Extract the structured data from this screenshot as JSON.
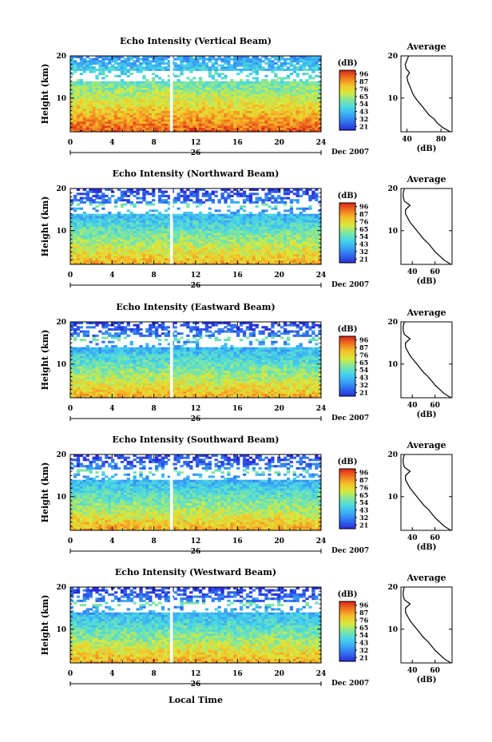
{
  "figure": {
    "xlabel": "Local Time",
    "date_label": "Dec 2007",
    "day_label": "26",
    "colorbar_unit": "(dB)",
    "colorbar_ticks": [
      "96",
      "87",
      "76",
      "65",
      "54",
      "43",
      "32",
      "21"
    ],
    "colorbar_colors": [
      "#2b2bd6",
      "#2f6cf0",
      "#3aa6f5",
      "#46d6e8",
      "#7ee6a0",
      "#d7ea3c",
      "#f6c02a",
      "#f0761e",
      "#d8231a"
    ],
    "avg_title": "Average",
    "avg_xlabel": "(dB)"
  },
  "chart_data": [
    {
      "type": "heatmap",
      "title": "Echo Intensity (Vertical Beam)",
      "ylabel": "Height (km)",
      "x": [
        0,
        4,
        8,
        12,
        16,
        20,
        24
      ],
      "xlim": [
        0,
        24
      ],
      "ylim": [
        2,
        20
      ],
      "yticks": [
        "20",
        "10"
      ],
      "data_gap_hour": 9.7,
      "colorbar_range_db": [
        21,
        96
      ],
      "average_profile": {
        "xlim": [
          33,
          93
        ],
        "xticks": [
          40,
          80
        ],
        "height_km": [
          2,
          3,
          4,
          5,
          6,
          7,
          8,
          9,
          10,
          11,
          12,
          13,
          14,
          15,
          16,
          17,
          18,
          19,
          20
        ],
        "db": [
          91,
          82,
          76,
          72,
          66,
          62,
          58,
          54,
          50,
          47,
          45,
          43,
          41,
          40,
          43,
          39,
          38,
          40,
          42
        ]
      }
    },
    {
      "type": "heatmap",
      "title": "Echo Intensity (Northward Beam)",
      "ylabel": "Height (km)",
      "x": [
        0,
        4,
        8,
        12,
        16,
        20,
        24
      ],
      "xlim": [
        0,
        24
      ],
      "ylim": [
        2,
        20
      ],
      "yticks": [
        "20",
        "10"
      ],
      "data_gap_hour": 9.7,
      "colorbar_range_db": [
        21,
        96
      ],
      "average_profile": {
        "xlim": [
          30,
          75
        ],
        "xticks": [
          40,
          60
        ],
        "height_km": [
          2,
          3,
          4,
          5,
          6,
          7,
          8,
          9,
          10,
          11,
          12,
          13,
          14,
          15,
          16,
          17,
          18,
          19,
          20
        ],
        "db": [
          74,
          68,
          64,
          60,
          57,
          54,
          50,
          47,
          44,
          41,
          38,
          36,
          34,
          34,
          38,
          33,
          32,
          32,
          33
        ]
      }
    },
    {
      "type": "heatmap",
      "title": "Echo Intensity (Eastward Beam)",
      "ylabel": "Height (km)",
      "x": [
        0,
        4,
        8,
        12,
        16,
        20,
        24
      ],
      "xlim": [
        0,
        24
      ],
      "ylim": [
        2,
        20
      ],
      "yticks": [
        "20",
        "10"
      ],
      "data_gap_hour": 9.7,
      "colorbar_range_db": [
        21,
        96
      ],
      "average_profile": {
        "xlim": [
          30,
          75
        ],
        "xticks": [
          40,
          60
        ],
        "height_km": [
          2,
          3,
          4,
          5,
          6,
          7,
          8,
          9,
          10,
          11,
          12,
          13,
          14,
          15,
          16,
          17,
          18,
          19,
          20
        ],
        "db": [
          74,
          68,
          64,
          60,
          57,
          54,
          50,
          47,
          44,
          41,
          38,
          36,
          34,
          34,
          38,
          33,
          32,
          32,
          33
        ]
      }
    },
    {
      "type": "heatmap",
      "title": "Echo Intensity (Southward Beam)",
      "ylabel": "Height (km)",
      "x": [
        0,
        4,
        8,
        12,
        16,
        20,
        24
      ],
      "xlim": [
        0,
        24
      ],
      "ylim": [
        2,
        20
      ],
      "yticks": [
        "20",
        "10"
      ],
      "data_gap_hour": 9.7,
      "colorbar_range_db": [
        21,
        96
      ],
      "average_profile": {
        "xlim": [
          30,
          75
        ],
        "xticks": [
          40,
          60
        ],
        "height_km": [
          2,
          3,
          4,
          5,
          6,
          7,
          8,
          9,
          10,
          11,
          12,
          13,
          14,
          15,
          16,
          17,
          18,
          19,
          20
        ],
        "db": [
          74,
          68,
          64,
          60,
          57,
          54,
          50,
          47,
          44,
          41,
          38,
          36,
          34,
          34,
          38,
          33,
          32,
          32,
          33
        ]
      }
    },
    {
      "type": "heatmap",
      "title": "Echo Intensity (Westward Beam)",
      "ylabel": "Height (km)",
      "x": [
        0,
        4,
        8,
        12,
        16,
        20,
        24
      ],
      "xlim": [
        0,
        24
      ],
      "ylim": [
        2,
        20
      ],
      "yticks": [
        "20",
        "10"
      ],
      "data_gap_hour": 9.7,
      "colorbar_range_db": [
        21,
        96
      ],
      "average_profile": {
        "xlim": [
          30,
          75
        ],
        "xticks": [
          40,
          60
        ],
        "height_km": [
          2,
          3,
          4,
          5,
          6,
          7,
          8,
          9,
          10,
          11,
          12,
          13,
          14,
          15,
          16,
          17,
          18,
          19,
          20
        ],
        "db": [
          74,
          68,
          64,
          60,
          57,
          54,
          50,
          47,
          44,
          41,
          38,
          36,
          34,
          34,
          38,
          33,
          32,
          32,
          33
        ]
      }
    }
  ]
}
